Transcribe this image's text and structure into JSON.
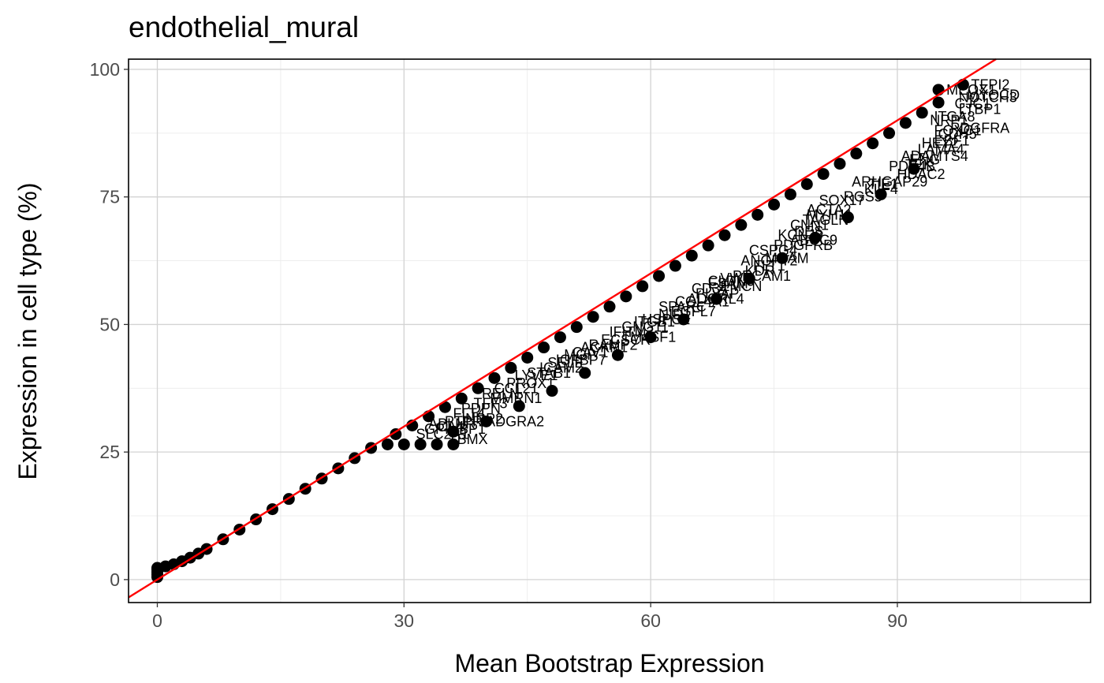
{
  "chart_data": {
    "type": "scatter",
    "title": "endothelial_mural",
    "xlabel": "Mean Bootstrap Expression",
    "ylabel": "Expression in cell type (%)",
    "xlim": [
      -3.5,
      113.5
    ],
    "ylim": [
      -4.5,
      102
    ],
    "x_ticks": [
      0,
      30,
      60,
      90
    ],
    "y_ticks": [
      0,
      25,
      50,
      75,
      100
    ],
    "x_tick_labels": [
      "0",
      "30",
      "60",
      "90"
    ],
    "y_tick_labels": [
      "0",
      "25",
      "50",
      "75",
      "100"
    ],
    "x_minor_ticks": [
      15,
      45,
      75,
      105
    ],
    "y_minor_ticks": [
      12.5,
      37.5,
      62.5,
      87.5
    ],
    "grid": true,
    "reference_line": {
      "slope": 1,
      "intercept": 0,
      "color": "#ff0000"
    },
    "point_color": "#000000",
    "series": [
      {
        "points": [
          {
            "x": 0,
            "y": 0.5
          },
          {
            "x": 0,
            "y": 1.0
          },
          {
            "x": 0,
            "y": 1.5
          },
          {
            "x": 0,
            "y": 2.0
          },
          {
            "x": 0,
            "y": 2.3
          },
          {
            "x": 1,
            "y": 2.6
          },
          {
            "x": 2,
            "y": 3.0
          },
          {
            "x": 3,
            "y": 3.6
          },
          {
            "x": 4,
            "y": 4.3
          },
          {
            "x": 5,
            "y": 5.1
          },
          {
            "x": 6,
            "y": 6.0
          },
          {
            "x": 8,
            "y": 7.9
          },
          {
            "x": 10,
            "y": 9.8
          },
          {
            "x": 12,
            "y": 11.8
          },
          {
            "x": 14,
            "y": 13.8
          },
          {
            "x": 16,
            "y": 15.8
          },
          {
            "x": 18,
            "y": 17.8
          },
          {
            "x": 20,
            "y": 19.8
          },
          {
            "x": 22,
            "y": 21.8
          },
          {
            "x": 24,
            "y": 23.8
          },
          {
            "x": 26,
            "y": 25.8
          },
          {
            "x": 28,
            "y": 26.5
          },
          {
            "x": 30,
            "y": 26.5
          },
          {
            "x": 32,
            "y": 26.5
          },
          {
            "x": 34,
            "y": 26.5
          },
          {
            "x": 36,
            "y": 26.5
          },
          {
            "x": 29,
            "y": 28.5
          },
          {
            "x": 31,
            "y": 30.2
          },
          {
            "x": 33,
            "y": 32.0
          },
          {
            "x": 35,
            "y": 33.8
          },
          {
            "x": 37,
            "y": 35.5
          },
          {
            "x": 39,
            "y": 37.5
          },
          {
            "x": 41,
            "y": 39.5
          },
          {
            "x": 43,
            "y": 41.5
          },
          {
            "x": 45,
            "y": 43.5
          },
          {
            "x": 47,
            "y": 45.5
          },
          {
            "x": 49,
            "y": 47.5
          },
          {
            "x": 51,
            "y": 49.5
          },
          {
            "x": 53,
            "y": 51.5
          },
          {
            "x": 55,
            "y": 53.5
          },
          {
            "x": 57,
            "y": 55.5
          },
          {
            "x": 59,
            "y": 57.5
          },
          {
            "x": 61,
            "y": 59.5
          },
          {
            "x": 63,
            "y": 61.5
          },
          {
            "x": 65,
            "y": 63.5
          },
          {
            "x": 67,
            "y": 65.5
          },
          {
            "x": 69,
            "y": 67.5
          },
          {
            "x": 71,
            "y": 69.5
          },
          {
            "x": 73,
            "y": 71.5
          },
          {
            "x": 75,
            "y": 73.5
          },
          {
            "x": 77,
            "y": 75.5
          },
          {
            "x": 79,
            "y": 77.5
          },
          {
            "x": 81,
            "y": 79.5
          },
          {
            "x": 83,
            "y": 81.5
          },
          {
            "x": 85,
            "y": 83.5
          },
          {
            "x": 87,
            "y": 85.5
          },
          {
            "x": 89,
            "y": 87.5
          },
          {
            "x": 91,
            "y": 89.5
          },
          {
            "x": 93,
            "y": 91.5
          },
          {
            "x": 95,
            "y": 93.5
          },
          {
            "x": 36,
            "y": 29.0
          },
          {
            "x": 40,
            "y": 31.0
          },
          {
            "x": 44,
            "y": 34.0
          },
          {
            "x": 48,
            "y": 37.0
          },
          {
            "x": 52,
            "y": 40.5
          },
          {
            "x": 56,
            "y": 44.0
          },
          {
            "x": 60,
            "y": 47.5
          },
          {
            "x": 64,
            "y": 51.0
          },
          {
            "x": 68,
            "y": 55.0
          },
          {
            "x": 72,
            "y": 59.0
          },
          {
            "x": 76,
            "y": 63.0
          },
          {
            "x": 80,
            "y": 67.0
          },
          {
            "x": 84,
            "y": 71.0
          },
          {
            "x": 88,
            "y": 75.5
          },
          {
            "x": 92,
            "y": 80.5
          },
          {
            "x": 95,
            "y": 96.0
          },
          {
            "x": 98,
            "y": 97.0
          }
        ]
      }
    ],
    "point_labels": [
      {
        "text": "TFPI2",
        "x": 98,
        "y": 97.0
      },
      {
        "text": "MEOX1",
        "x": 95,
        "y": 96.0
      },
      {
        "text": "NOTCH3",
        "x": 96.5,
        "y": 94.5
      },
      {
        "text": "GJC1",
        "x": 96.0,
        "y": 93.3
      },
      {
        "text": "MYOCD",
        "x": 97.5,
        "y": 95.0
      },
      {
        "text": "LTBP1",
        "x": 96.5,
        "y": 92.2
      },
      {
        "text": "ITGA8",
        "x": 93.5,
        "y": 90.7
      },
      {
        "text": "NRP1",
        "x": 93.0,
        "y": 90.0
      },
      {
        "text": "PDGFRA",
        "x": 95.5,
        "y": 88.5
      },
      {
        "text": "FOXC1",
        "x": 93.5,
        "y": 88.0
      },
      {
        "text": "CDH5",
        "x": 94.0,
        "y": 87.3
      },
      {
        "text": "EBF1",
        "x": 93.5,
        "y": 86.0
      },
      {
        "text": "HEY2",
        "x": 92.0,
        "y": 85.5
      },
      {
        "text": "LAMA4",
        "x": 91.5,
        "y": 84.3
      },
      {
        "text": "ADAMTS4",
        "x": 89.5,
        "y": 83.0
      },
      {
        "text": "ENG",
        "x": 90.5,
        "y": 82.3
      },
      {
        "text": "TEK",
        "x": 90.0,
        "y": 81.3
      },
      {
        "text": "PDE4B",
        "x": 88.0,
        "y": 81.0
      },
      {
        "text": "HDAC2",
        "x": 89.0,
        "y": 79.4
      },
      {
        "text": "ARHGAP29",
        "x": 83.5,
        "y": 78.0
      },
      {
        "text": "TIE1",
        "x": 85.5,
        "y": 77.5
      },
      {
        "text": "KLF4",
        "x": 85.0,
        "y": 76.5
      },
      {
        "text": "RGS5",
        "x": 82.5,
        "y": 75.0
      },
      {
        "text": "SOX17",
        "x": 79.5,
        "y": 74.3
      },
      {
        "text": "ACTA2",
        "x": 78.0,
        "y": 72.5
      },
      {
        "text": "MYH11",
        "x": 78.0,
        "y": 71.5
      },
      {
        "text": "TAGLN",
        "x": 77.5,
        "y": 70.5
      },
      {
        "text": "CNN1",
        "x": 76.0,
        "y": 69.5
      },
      {
        "text": "DES",
        "x": 76.5,
        "y": 68.2
      },
      {
        "text": "KCNJ8",
        "x": 74.5,
        "y": 67.5
      },
      {
        "text": "ABCC9",
        "x": 76.0,
        "y": 66.5
      },
      {
        "text": "PDGFRB",
        "x": 74.0,
        "y": 65.5
      },
      {
        "text": "CSPG4",
        "x": 71.0,
        "y": 64.5
      },
      {
        "text": "MCAM",
        "x": 73.0,
        "y": 63.0
      },
      {
        "text": "ANGPT2",
        "x": 70.0,
        "y": 62.5
      },
      {
        "text": "FLT1",
        "x": 71.5,
        "y": 61.5
      },
      {
        "text": "KDR",
        "x": 70.5,
        "y": 60.5
      },
      {
        "text": "PECAM1",
        "x": 69.0,
        "y": 59.5
      },
      {
        "text": "VWF",
        "x": 67.5,
        "y": 59.0
      },
      {
        "text": "CLDN5",
        "x": 66.0,
        "y": 58.5
      },
      {
        "text": "ESAM",
        "x": 66.0,
        "y": 58.0
      },
      {
        "text": "EMCN",
        "x": 67.5,
        "y": 57.5
      },
      {
        "text": "CD34",
        "x": 64.0,
        "y": 57.0
      },
      {
        "text": "PLVAP",
        "x": 64.5,
        "y": 56.0
      },
      {
        "text": "ADGRL4",
        "x": 63.5,
        "y": 55.0
      },
      {
        "text": "COL4A1",
        "x": 62.0,
        "y": 54.5
      },
      {
        "text": "SPARC",
        "x": 60.0,
        "y": 53.5
      },
      {
        "text": "EGFL7",
        "x": 61.5,
        "y": 52.5
      },
      {
        "text": "NID1",
        "x": 60.0,
        "y": 52.0
      },
      {
        "text": "HSPG2",
        "x": 58.0,
        "y": 51.0
      },
      {
        "text": "ITGB1",
        "x": 57.0,
        "y": 50.5
      },
      {
        "text": "GNG11",
        "x": 55.5,
        "y": 49.5
      },
      {
        "text": "IFITM3",
        "x": 54.0,
        "y": 48.5
      },
      {
        "text": "TM4SF1",
        "x": 55.5,
        "y": 47.5
      },
      {
        "text": "ECSCR",
        "x": 53.0,
        "y": 47.0
      },
      {
        "text": "RAMP2",
        "x": 51.5,
        "y": 46.0
      },
      {
        "text": "ACKR1",
        "x": 50.5,
        "y": 45.5
      },
      {
        "text": "CAV1",
        "x": 49.5,
        "y": 44.5
      },
      {
        "text": "MGP",
        "x": 48.5,
        "y": 44.0
      },
      {
        "text": "IGFBP7",
        "x": 47.5,
        "y": 43.0
      },
      {
        "text": "SELE",
        "x": 46.5,
        "y": 42.5
      },
      {
        "text": "ICAM2",
        "x": 45.5,
        "y": 41.5
      },
      {
        "text": "STAB1",
        "x": 44.0,
        "y": 40.5
      },
      {
        "text": "LYVE1",
        "x": 42.5,
        "y": 40.0
      },
      {
        "text": "PROX1",
        "x": 41.5,
        "y": 38.5
      },
      {
        "text": "CCL21",
        "x": 40.0,
        "y": 37.5
      },
      {
        "text": "RELN",
        "x": 38.5,
        "y": 36.5
      },
      {
        "text": "MMRN1",
        "x": 39.5,
        "y": 35.5
      },
      {
        "text": "TFF3",
        "x": 37.5,
        "y": 34.5
      },
      {
        "text": "PDPN",
        "x": 36.0,
        "y": 33.5
      },
      {
        "text": "FLT4",
        "x": 35.0,
        "y": 32.5
      },
      {
        "text": "NRP2",
        "x": 36.5,
        "y": 31.5
      },
      {
        "text": "PTPRB",
        "x": 34.0,
        "y": 31.0
      },
      {
        "text": "APLNR",
        "x": 32.0,
        "y": 30.5
      },
      {
        "text": "CA4",
        "x": 33.0,
        "y": 30.0
      },
      {
        "text": "GPIHBP1",
        "x": 31.5,
        "y": 29.5
      },
      {
        "text": "SLC2A1",
        "x": 30.5,
        "y": 28.5
      },
      {
        "text": "ADGRA2",
        "x": 39.0,
        "y": 31.0
      },
      {
        "text": "BMX",
        "x": 35.5,
        "y": 27.5
      }
    ]
  }
}
